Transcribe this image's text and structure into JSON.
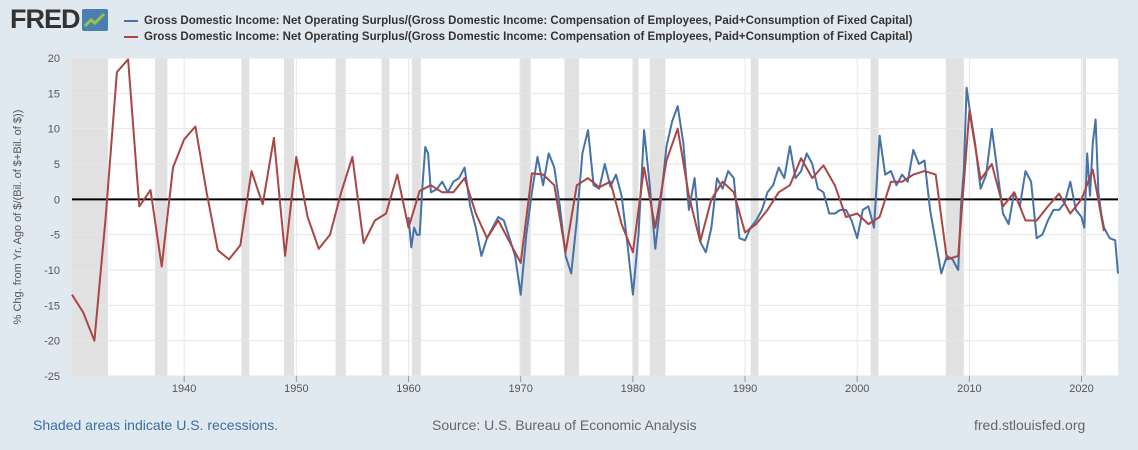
{
  "header": {
    "logo_text": "FRED"
  },
  "footer": {
    "recession_note": "Shaded areas indicate U.S. recessions.",
    "source": "Source: U.S. Bureau of Economic Analysis",
    "site": "fred.stlouisfed.org"
  },
  "colors": {
    "background": "#e1e9f0",
    "plot_background": "#ffffff",
    "recession": "#e1e1e1",
    "series_quarterly": "#4572a7",
    "series_annual": "#aa4643",
    "zero_line": "#000000"
  },
  "chart_data": {
    "type": "line",
    "title": "",
    "xlabel": "",
    "ylabel": "% Chg. from Yr. Ago of $/(Bil. of $+Bil. of $))",
    "xlim": [
      1930,
      2023.25
    ],
    "ylim": [
      -25,
      20
    ],
    "yticks": [
      "20",
      "15",
      "10",
      "5",
      "0",
      "-5",
      "-10",
      "-15",
      "-20",
      "-25"
    ],
    "xticks": [
      "1940",
      "1950",
      "1960",
      "1970",
      "1980",
      "1990",
      "2000",
      "2010",
      "2020"
    ],
    "grid": true,
    "legend_position": "top",
    "recessions": [
      [
        1929.6,
        1933.2
      ],
      [
        1937.4,
        1938.5
      ],
      [
        1945.1,
        1945.8
      ],
      [
        1948.9,
        1949.8
      ],
      [
        1953.5,
        1954.4
      ],
      [
        1957.6,
        1958.3
      ],
      [
        1960.3,
        1961.1
      ],
      [
        1969.9,
        1970.9
      ],
      [
        1973.9,
        1975.2
      ],
      [
        1980.0,
        1980.5
      ],
      [
        1981.5,
        1982.9
      ],
      [
        1990.5,
        1991.2
      ],
      [
        2001.2,
        2001.9
      ],
      [
        2007.9,
        2009.5
      ],
      [
        2020.1,
        2020.4
      ]
    ],
    "series": [
      {
        "name": "Gross Domestic Income: Net Operating Surplus/(Gross Domestic Income: Compensation of Employees, Paid+Consumption of Fixed Capital)",
        "frequency": "quarterly",
        "color": "#4572a7",
        "x": [
          1960.0,
          1960.25,
          1960.5,
          1960.75,
          1961.0,
          1961.25,
          1961.5,
          1961.75,
          1962.0,
          1962.5,
          1963.0,
          1963.5,
          1964.0,
          1964.5,
          1965.0,
          1965.5,
          1966.0,
          1966.5,
          1967.0,
          1967.5,
          1968.0,
          1968.5,
          1969.0,
          1969.5,
          1970.0,
          1970.5,
          1971.0,
          1971.5,
          1972.0,
          1972.5,
          1973.0,
          1973.5,
          1974.0,
          1974.5,
          1975.0,
          1975.5,
          1976.0,
          1976.5,
          1977.0,
          1977.5,
          1978.0,
          1978.5,
          1979.0,
          1979.5,
          1980.0,
          1980.5,
          1981.0,
          1981.5,
          1982.0,
          1982.5,
          1983.0,
          1983.5,
          1984.0,
          1984.5,
          1985.0,
          1985.5,
          1986.0,
          1986.5,
          1987.0,
          1987.5,
          1988.0,
          1988.5,
          1989.0,
          1989.5,
          1990.0,
          1990.5,
          1991.0,
          1991.5,
          1992.0,
          1992.5,
          1993.0,
          1993.5,
          1994.0,
          1994.5,
          1995.0,
          1995.5,
          1996.0,
          1996.5,
          1997.0,
          1997.5,
          1998.0,
          1998.5,
          1999.0,
          1999.5,
          2000.0,
          2000.5,
          2001.0,
          2001.5,
          2002.0,
          2002.5,
          2003.0,
          2003.5,
          2004.0,
          2004.5,
          2005.0,
          2005.5,
          2006.0,
          2006.5,
          2007.0,
          2007.5,
          2008.0,
          2008.5,
          2009.0,
          2009.25,
          2009.5,
          2009.75,
          2010.0,
          2010.5,
          2011.0,
          2011.5,
          2012.0,
          2012.5,
          2013.0,
          2013.5,
          2014.0,
          2014.5,
          2015.0,
          2015.5,
          2016.0,
          2016.5,
          2017.0,
          2017.5,
          2018.0,
          2018.5,
          2019.0,
          2019.5,
          2020.0,
          2020.25,
          2020.5,
          2020.75,
          2021.0,
          2021.25,
          2021.5,
          2021.75,
          2022.0,
          2022.5,
          2023.0,
          2023.25
        ],
        "y": [
          -2.5,
          -6.8,
          -4.0,
          -5.0,
          -5.0,
          2.0,
          7.4,
          6.5,
          1.0,
          1.4,
          2.5,
          1.0,
          2.5,
          3.0,
          4.5,
          -1.0,
          -4.0,
          -8.0,
          -5.5,
          -4.0,
          -2.5,
          -3.0,
          -5.5,
          -8.0,
          -13.5,
          -5.0,
          1.0,
          6.0,
          2.0,
          6.5,
          4.5,
          -1.0,
          -8.0,
          -10.5,
          -3.0,
          6.5,
          9.8,
          2.0,
          1.5,
          5.0,
          1.8,
          3.5,
          0.5,
          -6.0,
          -13.5,
          -5.0,
          9.8,
          2.0,
          -7.0,
          0.0,
          7.5,
          11.0,
          13.2,
          8.0,
          -1.5,
          3.0,
          -6.0,
          -7.5,
          -4.0,
          3.0,
          1.5,
          4.0,
          3.0,
          -5.5,
          -5.8,
          -4.0,
          -3.0,
          -1.5,
          1.0,
          2.0,
          4.5,
          3.0,
          7.5,
          3.0,
          4.0,
          6.5,
          5.0,
          1.5,
          1.0,
          -2.0,
          -2.0,
          -1.5,
          -1.5,
          -3.0,
          -5.5,
          -1.5,
          -1.0,
          -4.0,
          9.0,
          3.5,
          4.0,
          2.0,
          3.5,
          2.5,
          7.0,
          5.0,
          5.5,
          -1.5,
          -6.0,
          -10.5,
          -8.0,
          -8.5,
          -10.0,
          -1.0,
          4.0,
          15.8,
          13.0,
          8.0,
          1.5,
          3.5,
          10.0,
          4.0,
          -2.0,
          -3.5,
          1.0,
          -1.0,
          4.0,
          2.5,
          -5.5,
          -5.0,
          -3.0,
          -1.5,
          -1.5,
          -0.5,
          2.5,
          -1.5,
          -2.5,
          -4.0,
          6.5,
          0.5,
          8.0,
          11.3,
          1.0,
          -2.0,
          -4.0,
          -5.5,
          -5.8,
          -10.5
        ]
      },
      {
        "name": "Gross Domestic Income: Net Operating Surplus/(Gross Domestic Income: Compensation of Employees, Paid+Consumption of Fixed Capital)",
        "frequency": "annual",
        "color": "#aa4643",
        "x": [
          1930,
          1931,
          1932,
          1933,
          1934,
          1935,
          1936,
          1937,
          1938,
          1939,
          1940,
          1941,
          1942,
          1943,
          1944,
          1945,
          1946,
          1947,
          1948,
          1949,
          1950,
          1951,
          1952,
          1953,
          1954,
          1955,
          1956,
          1957,
          1958,
          1959,
          1960,
          1961,
          1962,
          1963,
          1964,
          1965,
          1966,
          1967,
          1968,
          1969,
          1970,
          1971,
          1972,
          1973,
          1974,
          1975,
          1976,
          1977,
          1978,
          1979,
          1980,
          1981,
          1982,
          1983,
          1984,
          1985,
          1986,
          1987,
          1988,
          1989,
          1990,
          1991,
          1992,
          1993,
          1994,
          1995,
          1996,
          1997,
          1998,
          1999,
          2000,
          2001,
          2002,
          2003,
          2004,
          2005,
          2006,
          2007,
          2008,
          2009,
          2010,
          2011,
          2012,
          2013,
          2014,
          2015,
          2016,
          2017,
          2018,
          2019,
          2020,
          2021,
          2022
        ],
        "y": [
          -13.5,
          -16.0,
          -20.0,
          -2.5,
          18.0,
          19.8,
          -1.0,
          1.3,
          -9.5,
          4.5,
          8.5,
          10.3,
          1.0,
          -7.2,
          -8.5,
          -6.5,
          4.0,
          -0.7,
          8.7,
          -8.0,
          6.0,
          -2.5,
          -7.0,
          -5.0,
          1.0,
          6.0,
          -6.2,
          -3.0,
          -2.0,
          3.5,
          -4.0,
          1.2,
          2.0,
          1.0,
          1.0,
          3.0,
          -2.0,
          -5.5,
          -3.0,
          -6.0,
          -9.0,
          3.7,
          3.5,
          2.0,
          -7.5,
          2.0,
          3.0,
          1.7,
          2.5,
          -3.5,
          -7.5,
          4.5,
          -4.0,
          5.5,
          10.0,
          0.5,
          -6.0,
          0.0,
          2.5,
          1.0,
          -4.7,
          -3.5,
          -1.5,
          1.0,
          2.0,
          5.8,
          3.0,
          4.8,
          2.0,
          -2.5,
          -2.0,
          -3.5,
          -2.5,
          2.5,
          2.5,
          3.5,
          4.0,
          3.5,
          -8.5,
          -8.0,
          12.5,
          2.8,
          5.0,
          -1.0,
          1.0,
          -3.0,
          -3.0,
          -1.0,
          0.8,
          -2.0,
          0.0,
          4.2,
          -4.5
        ]
      }
    ]
  }
}
